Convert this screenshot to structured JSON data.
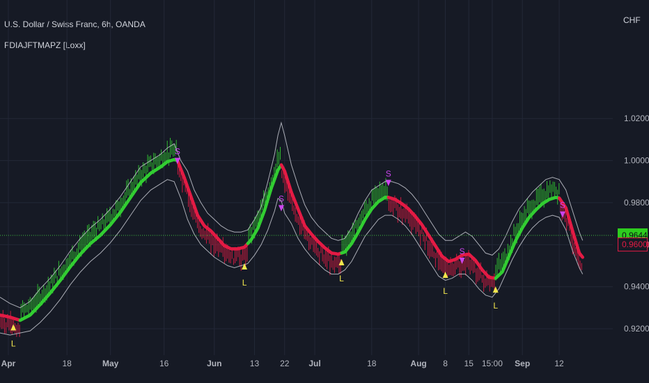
{
  "header": {
    "symbol_title": "U.S. Dollar / Swiss Franc, 6h, OANDA",
    "indicator_title": "FDIAJFTMAPZ [Loxx]",
    "currency": "CHF"
  },
  "chart_data": {
    "type": "line",
    "title": "",
    "xlabel": "",
    "ylabel": "",
    "ylim": [
      0.9075,
      1.0375
    ],
    "grid": true,
    "y_ticks": [
      "0.92000",
      "0.94000",
      "0.96000",
      "0.98000",
      "1.00000",
      "1.02000"
    ],
    "y_tick_values": [
      0.92,
      0.94,
      0.96,
      0.98,
      1.0,
      1.02
    ],
    "x_ticks": [
      {
        "label": "Apr",
        "t": -0.5
      },
      {
        "label": "18",
        "t": 17
      },
      {
        "label": "May",
        "t": 30
      },
      {
        "label": "16",
        "t": 46
      },
      {
        "label": "Jun",
        "t": 61
      },
      {
        "label": "13",
        "t": 73
      },
      {
        "label": "22",
        "t": 82
      },
      {
        "label": "Jul",
        "t": 91
      },
      {
        "label": "18",
        "t": 108
      },
      {
        "label": "Aug",
        "t": 122
      },
      {
        "label": "8",
        "t": 130
      },
      {
        "label": "15",
        "t": 137
      },
      {
        "label": "15:00",
        "t": 144
      },
      {
        "label": "Sep",
        "t": 153
      },
      {
        "label": "12",
        "t": 164
      }
    ],
    "x_range": [
      -3,
      180
    ],
    "colors": {
      "up": "#32cd32",
      "down": "#e31b44",
      "band": "#c5c8d0",
      "long": "#f2e64d",
      "short": "#cc44ee",
      "hline": "#3fbf3f",
      "grid": "#232837"
    },
    "series": [
      {
        "role": "ma",
        "points": [
          [
            -3,
            0.9265
          ],
          [
            0,
            0.9255
          ],
          [
            3,
            0.924
          ],
          [
            6,
            0.9265
          ],
          [
            9,
            0.9315
          ],
          [
            12,
            0.937
          ],
          [
            15,
            0.943
          ],
          [
            18,
            0.9495
          ],
          [
            21,
            0.9555
          ],
          [
            24,
            0.9605
          ],
          [
            27,
            0.9645
          ],
          [
            30,
            0.9695
          ],
          [
            33,
            0.9755
          ],
          [
            36,
            0.9825
          ],
          [
            39,
            0.9895
          ],
          [
            42,
            0.994
          ],
          [
            45,
            0.997
          ],
          [
            47,
            0.9995
          ],
          [
            49,
            1.0005
          ],
          [
            50,
            1.0
          ],
          [
            52,
            0.992
          ],
          [
            54,
            0.983
          ],
          [
            56,
            0.974
          ],
          [
            58,
            0.969
          ],
          [
            60,
            0.9665
          ],
          [
            62,
            0.963
          ],
          [
            64,
            0.9595
          ],
          [
            66,
            0.958
          ],
          [
            68,
            0.958
          ],
          [
            70,
            0.9588
          ],
          [
            72,
            0.9623
          ],
          [
            74,
            0.9678
          ],
          [
            76,
            0.9763
          ],
          [
            78,
            0.9868
          ],
          [
            80,
            0.9955
          ],
          [
            81,
            0.998
          ],
          [
            82,
            0.995
          ],
          [
            84,
            0.985
          ],
          [
            86,
            0.977
          ],
          [
            88,
            0.969
          ],
          [
            90,
            0.965
          ],
          [
            92,
            0.9615
          ],
          [
            94,
            0.9585
          ],
          [
            96,
            0.956
          ],
          [
            98,
            0.9555
          ],
          [
            100,
            0.9565
          ],
          [
            102,
            0.9605
          ],
          [
            104,
            0.966
          ],
          [
            106,
            0.972
          ],
          [
            108,
            0.977
          ],
          [
            110,
            0.9805
          ],
          [
            112,
            0.9825
          ],
          [
            113,
            0.9825
          ],
          [
            115,
            0.9815
          ],
          [
            117,
            0.9795
          ],
          [
            119,
            0.977
          ],
          [
            121,
            0.9735
          ],
          [
            123,
            0.9695
          ],
          [
            125,
            0.9645
          ],
          [
            127,
            0.9595
          ],
          [
            129,
            0.9545
          ],
          [
            131,
            0.952
          ],
          [
            133,
            0.953
          ],
          [
            135,
            0.955
          ],
          [
            137,
            0.9555
          ],
          [
            139,
            0.9525
          ],
          [
            141,
            0.948
          ],
          [
            143,
            0.9445
          ],
          [
            145,
            0.944
          ],
          [
            147,
            0.947
          ],
          [
            149,
            0.9545
          ],
          [
            151,
            0.962
          ],
          [
            153,
            0.968
          ],
          [
            155,
            0.973
          ],
          [
            157,
            0.9765
          ],
          [
            159,
            0.9795
          ],
          [
            161,
            0.9815
          ],
          [
            163,
            0.9825
          ],
          [
            164,
            0.9822
          ],
          [
            166,
            0.9775
          ],
          [
            168,
            0.9665
          ],
          [
            170,
            0.956
          ],
          [
            171,
            0.954
          ]
        ],
        "down_ranges": [
          [
            -3,
            3
          ],
          [
            50,
            71
          ],
          [
            81,
            99
          ],
          [
            113,
            145
          ],
          [
            164,
            171
          ]
        ]
      },
      {
        "role": "upper-band",
        "points": [
          [
            -3,
            0.935
          ],
          [
            0,
            0.932
          ],
          [
            3,
            0.93
          ],
          [
            6,
            0.933
          ],
          [
            9,
            0.939
          ],
          [
            12,
            0.944
          ],
          [
            15,
            0.95
          ],
          [
            18,
            0.957
          ],
          [
            21,
            0.963
          ],
          [
            24,
            0.968
          ],
          [
            27,
            0.972
          ],
          [
            30,
            0.977
          ],
          [
            33,
            0.983
          ],
          [
            36,
            0.99
          ],
          [
            39,
            0.997
          ],
          [
            42,
            1.0
          ],
          [
            45,
            1.003
          ],
          [
            47,
            1.006
          ],
          [
            49,
            1.008
          ],
          [
            51,
            1.0
          ],
          [
            53,
            0.995
          ],
          [
            55,
            0.986
          ],
          [
            57,
            0.98
          ],
          [
            59,
            0.975
          ],
          [
            61,
            0.972
          ],
          [
            63,
            0.969
          ],
          [
            65,
            0.967
          ],
          [
            67,
            0.966
          ],
          [
            69,
            0.966
          ],
          [
            71,
            0.967
          ],
          [
            73,
            0.972
          ],
          [
            75,
            0.978
          ],
          [
            77,
            0.99
          ],
          [
            79,
            1.003
          ],
          [
            80,
            1.012
          ],
          [
            81,
            1.018
          ],
          [
            82,
            1.012
          ],
          [
            84,
            0.998
          ],
          [
            86,
            0.988
          ],
          [
            88,
            0.979
          ],
          [
            90,
            0.973
          ],
          [
            92,
            0.969
          ],
          [
            94,
            0.966
          ],
          [
            96,
            0.963
          ],
          [
            98,
            0.962
          ],
          [
            100,
            0.963
          ],
          [
            102,
            0.968
          ],
          [
            104,
            0.975
          ],
          [
            106,
            0.981
          ],
          [
            108,
            0.986
          ],
          [
            110,
            0.988
          ],
          [
            112,
            0.99
          ],
          [
            114,
            0.99
          ],
          [
            116,
            0.989
          ],
          [
            118,
            0.987
          ],
          [
            120,
            0.984
          ],
          [
            122,
            0.98
          ],
          [
            124,
            0.975
          ],
          [
            126,
            0.97
          ],
          [
            128,
            0.965
          ],
          [
            130,
            0.962
          ],
          [
            132,
            0.962
          ],
          [
            134,
            0.964
          ],
          [
            136,
            0.966
          ],
          [
            138,
            0.964
          ],
          [
            140,
            0.96
          ],
          [
            142,
            0.956
          ],
          [
            144,
            0.955
          ],
          [
            146,
            0.958
          ],
          [
            148,
            0.964
          ],
          [
            150,
            0.971
          ],
          [
            152,
            0.977
          ],
          [
            154,
            0.981
          ],
          [
            156,
            0.985
          ],
          [
            158,
            0.988
          ],
          [
            160,
            0.991
          ],
          [
            162,
            0.992
          ],
          [
            164,
            0.991
          ],
          [
            166,
            0.986
          ],
          [
            168,
            0.976
          ],
          [
            170,
            0.966
          ],
          [
            171,
            0.962
          ]
        ]
      },
      {
        "role": "lower-band",
        "points": [
          [
            -3,
            0.918
          ],
          [
            0,
            0.917
          ],
          [
            3,
            0.918
          ],
          [
            6,
            0.919
          ],
          [
            9,
            0.923
          ],
          [
            12,
            0.928
          ],
          [
            15,
            0.934
          ],
          [
            18,
            0.941
          ],
          [
            21,
            0.947
          ],
          [
            24,
            0.952
          ],
          [
            27,
            0.956
          ],
          [
            30,
            0.961
          ],
          [
            33,
            0.967
          ],
          [
            36,
            0.974
          ],
          [
            39,
            0.981
          ],
          [
            42,
            0.986
          ],
          [
            45,
            0.989
          ],
          [
            47,
            0.991
          ],
          [
            49,
            0.99
          ],
          [
            51,
            0.982
          ],
          [
            53,
            0.972
          ],
          [
            55,
            0.965
          ],
          [
            57,
            0.96
          ],
          [
            59,
            0.957
          ],
          [
            61,
            0.954
          ],
          [
            63,
            0.952
          ],
          [
            65,
            0.95
          ],
          [
            67,
            0.949
          ],
          [
            69,
            0.95
          ],
          [
            71,
            0.951
          ],
          [
            73,
            0.955
          ],
          [
            75,
            0.96
          ],
          [
            77,
            0.967
          ],
          [
            79,
            0.976
          ],
          [
            80,
            0.982
          ],
          [
            81,
            0.981
          ],
          [
            82,
            0.975
          ],
          [
            84,
            0.97
          ],
          [
            86,
            0.963
          ],
          [
            88,
            0.958
          ],
          [
            90,
            0.954
          ],
          [
            92,
            0.951
          ],
          [
            94,
            0.948
          ],
          [
            96,
            0.946
          ],
          [
            98,
            0.946
          ],
          [
            100,
            0.948
          ],
          [
            102,
            0.952
          ],
          [
            104,
            0.958
          ],
          [
            106,
            0.964
          ],
          [
            108,
            0.968
          ],
          [
            110,
            0.972
          ],
          [
            112,
            0.974
          ],
          [
            114,
            0.974
          ],
          [
            116,
            0.972
          ],
          [
            118,
            0.969
          ],
          [
            120,
            0.965
          ],
          [
            122,
            0.96
          ],
          [
            124,
            0.955
          ],
          [
            126,
            0.95
          ],
          [
            128,
            0.945
          ],
          [
            130,
            0.943
          ],
          [
            132,
            0.944
          ],
          [
            134,
            0.946
          ],
          [
            136,
            0.946
          ],
          [
            138,
            0.943
          ],
          [
            140,
            0.939
          ],
          [
            142,
            0.936
          ],
          [
            144,
            0.935
          ],
          [
            146,
            0.939
          ],
          [
            148,
            0.946
          ],
          [
            150,
            0.953
          ],
          [
            152,
            0.959
          ],
          [
            154,
            0.964
          ],
          [
            156,
            0.968
          ],
          [
            158,
            0.971
          ],
          [
            160,
            0.973
          ],
          [
            162,
            0.974
          ],
          [
            164,
            0.973
          ],
          [
            166,
            0.967
          ],
          [
            168,
            0.957
          ],
          [
            170,
            0.949
          ],
          [
            171,
            0.946
          ]
        ]
      }
    ],
    "signals": [
      {
        "type": "long",
        "t": 1,
        "price": 0.9205,
        "label": "L"
      },
      {
        "type": "short",
        "t": 50,
        "price": 1.0,
        "label": "S"
      },
      {
        "type": "long",
        "t": 70,
        "price": 0.9495,
        "label": "L"
      },
      {
        "type": "short",
        "t": 81,
        "price": 0.9775,
        "label": "S"
      },
      {
        "type": "long",
        "t": 99,
        "price": 0.9515,
        "label": "L"
      },
      {
        "type": "short",
        "t": 113,
        "price": 0.9895,
        "label": "S"
      },
      {
        "type": "long",
        "t": 130,
        "price": 0.9455,
        "label": "L"
      },
      {
        "type": "short",
        "t": 135,
        "price": 0.9525,
        "label": "S"
      },
      {
        "type": "long",
        "t": 145,
        "price": 0.9385,
        "label": "L"
      },
      {
        "type": "short",
        "t": 165,
        "price": 0.9745,
        "label": "S"
      }
    ],
    "price_line": 0.96443,
    "price_labels": [
      {
        "value": "0.96443",
        "price": 0.96443,
        "style": "filled"
      },
      {
        "value": "0.96006",
        "price": 0.96006,
        "style": "outlined"
      }
    ]
  }
}
